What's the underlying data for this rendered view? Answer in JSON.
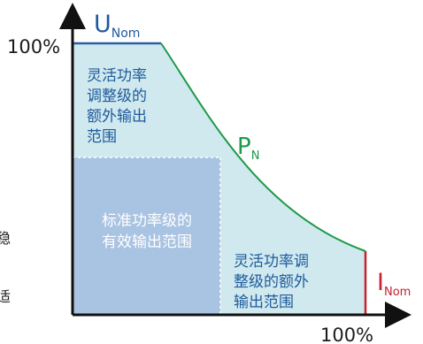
{
  "axes": {
    "y_max_label": "100%",
    "x_max_label": "100%"
  },
  "labels": {
    "u_nom_main": "U",
    "u_nom_sub": "Nom",
    "p_n_main": "P",
    "p_n_sub": "N",
    "i_nom_main": "I",
    "i_nom_sub": "Nom"
  },
  "regions": {
    "upper_left": [
      "灵活功率",
      "调整级的",
      "额外输出",
      "范围"
    ],
    "center": [
      "标准功率级的",
      "有效输出范围"
    ],
    "lower_right": [
      "灵活功率调",
      "整级的额外",
      "输出范围"
    ]
  },
  "edge_fragments": {
    "left_top": "稳",
    "left_bottom": "适"
  },
  "colors": {
    "light_region": "#cfe9ee",
    "standard_region": "#a9c3e2",
    "voltage_line": "#2b5fa3",
    "power_curve": "#1d9a4a",
    "current_line": "#c8202c",
    "axis": "#111111",
    "region_text_light": "#1f5a9c",
    "region_text_dark": "#ffffff"
  }
}
